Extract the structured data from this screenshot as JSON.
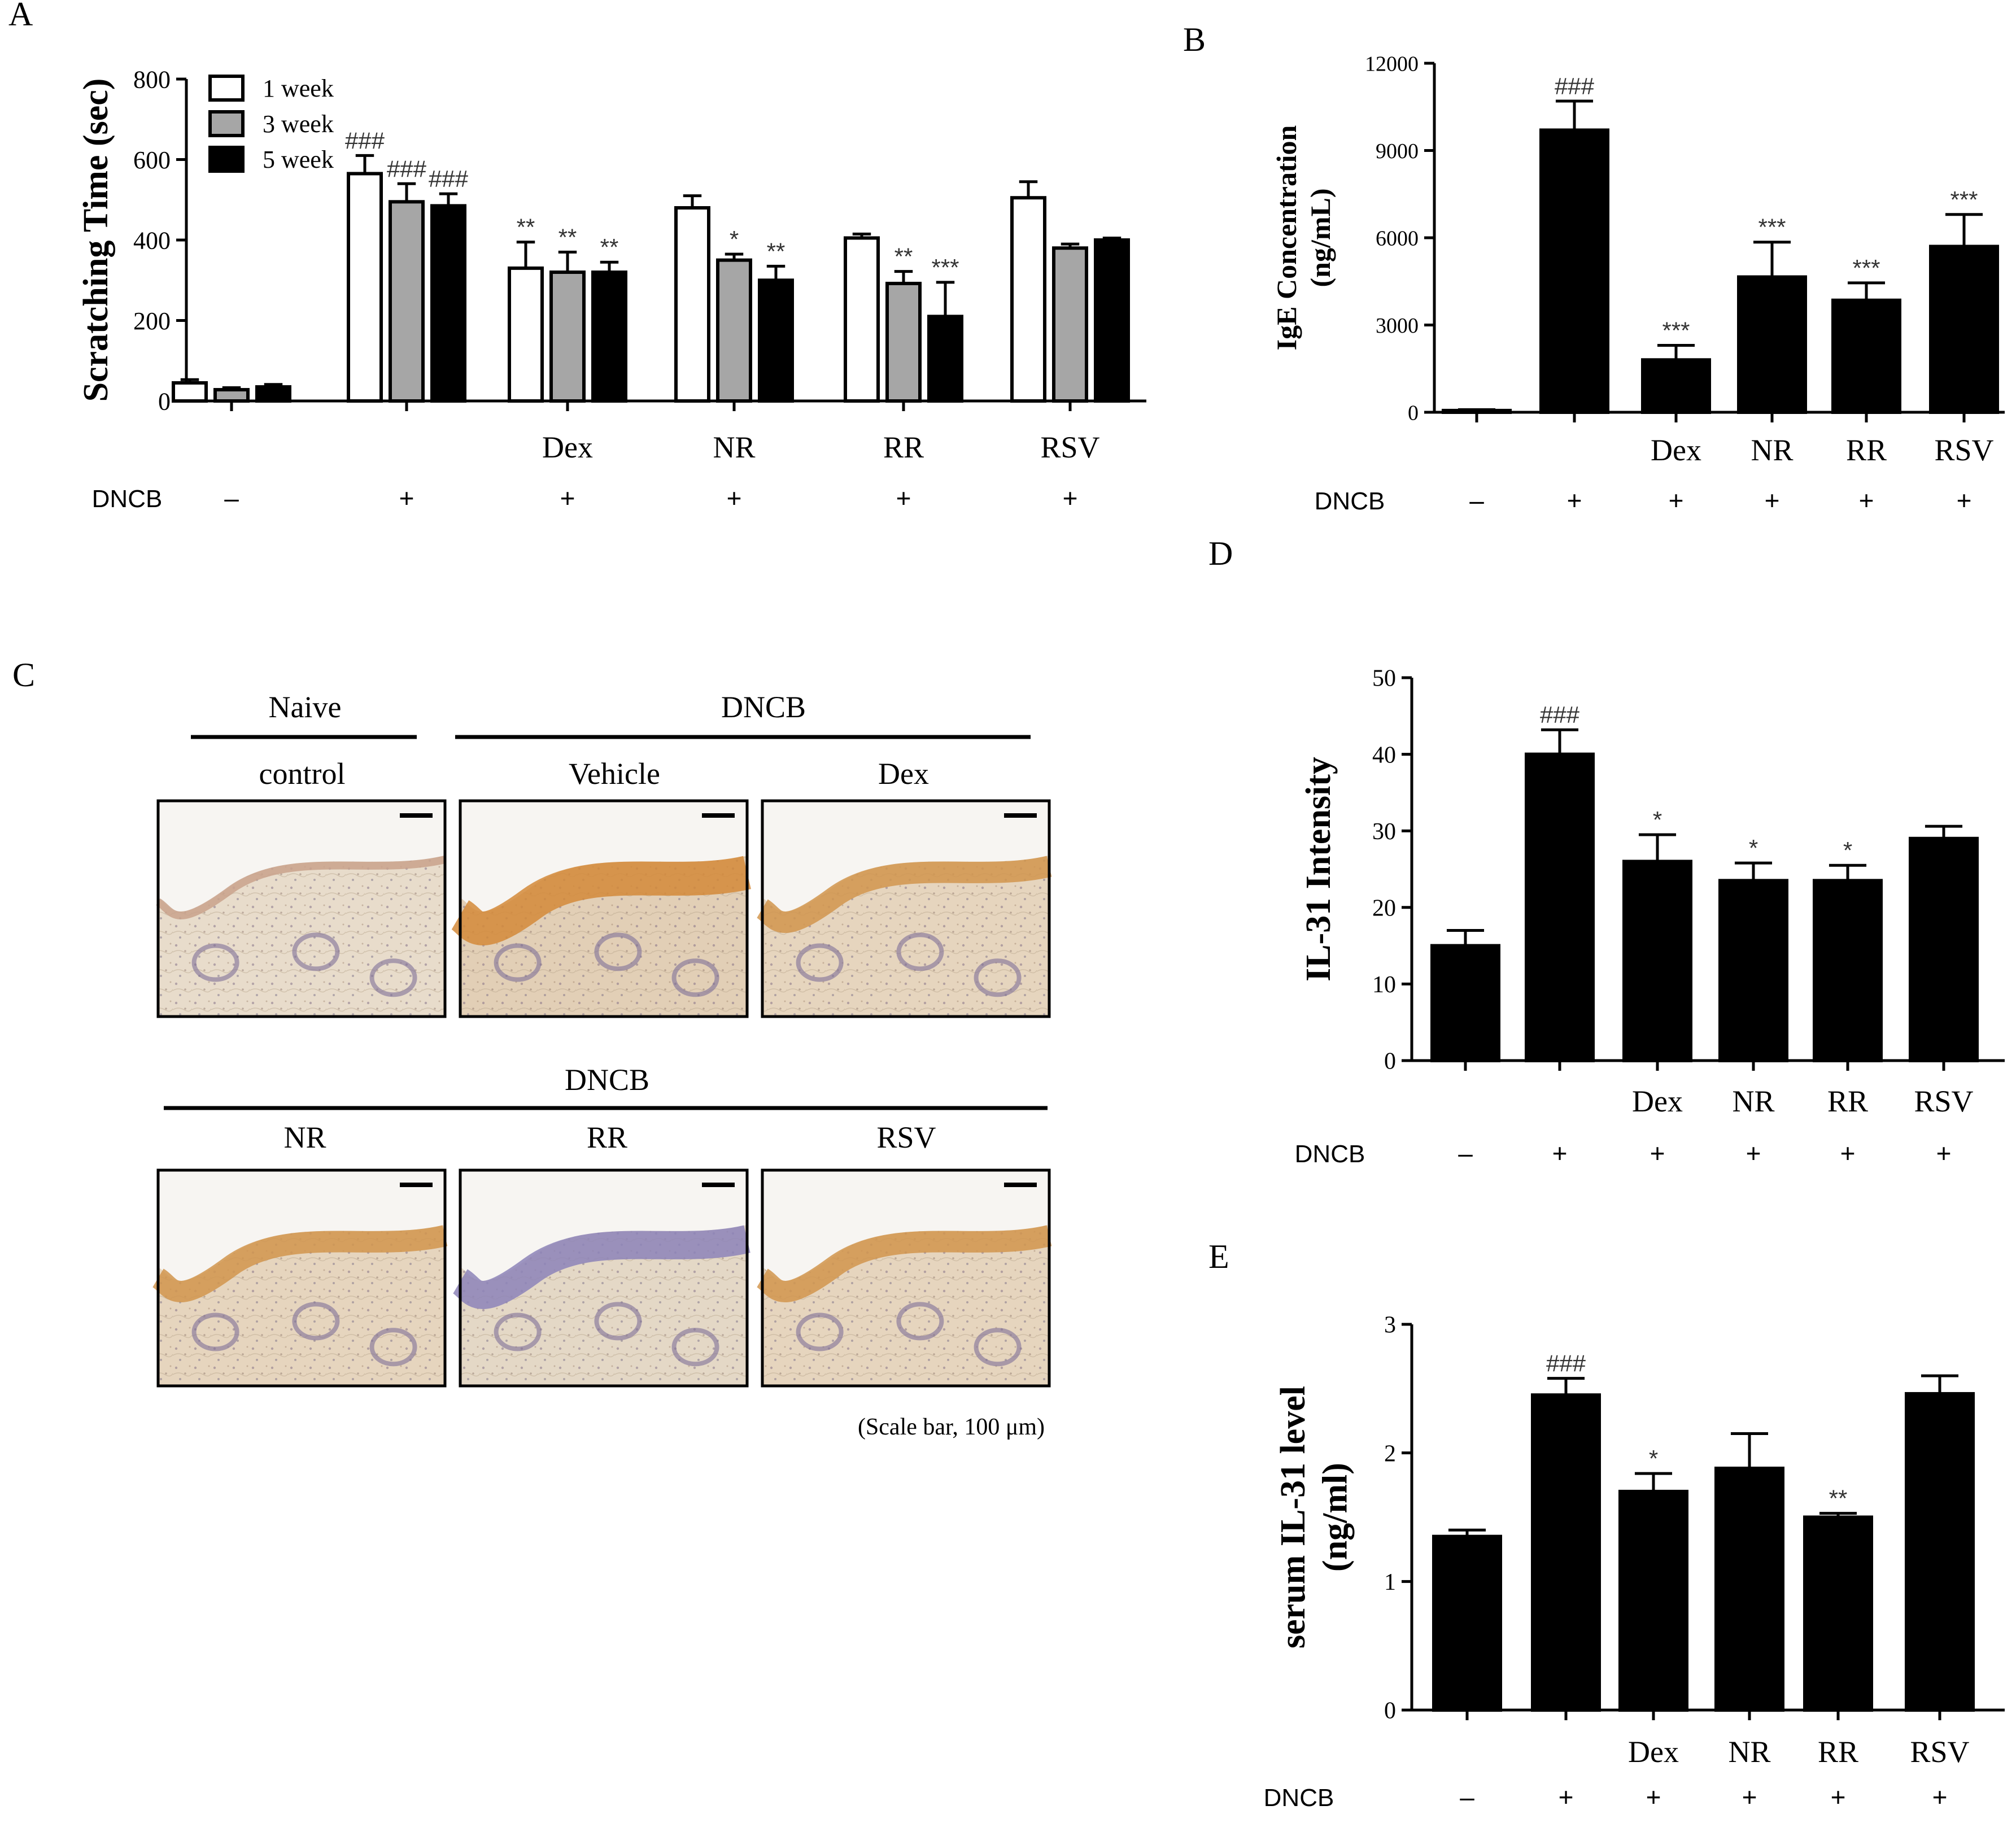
{
  "chart_data": [
    {
      "id": "A",
      "panel_label": "A",
      "type": "bar",
      "ylabel": "Scratching Time (sec)",
      "ylim": [
        0,
        800
      ],
      "yticks": [
        "0",
        "200",
        "400",
        "600",
        "800"
      ],
      "group_labels": [
        "",
        "",
        "Dex",
        "NR",
        "RR",
        "RSV"
      ],
      "row_label": "DNCB",
      "row_values": [
        "–",
        "+",
        "+",
        "+",
        "+",
        "+"
      ],
      "legend": [
        "1 week",
        "3 week",
        "5 week"
      ],
      "series": [
        {
          "name": "1 week",
          "color": "#ffffff",
          "values": [
            45,
            565,
            330,
            480,
            405,
            505
          ],
          "errors": [
            8,
            45,
            65,
            30,
            10,
            40
          ],
          "labels": [
            "",
            "###",
            "**",
            "",
            "",
            ""
          ]
        },
        {
          "name": "3 week",
          "color": "#a6a6a6",
          "values": [
            28,
            495,
            320,
            350,
            292,
            380
          ],
          "errors": [
            5,
            45,
            50,
            15,
            30,
            10
          ],
          "labels": [
            "",
            "###",
            "**",
            "*",
            "**",
            ""
          ]
        },
        {
          "name": "5 week",
          "color": "#000000",
          "values": [
            35,
            485,
            320,
            300,
            210,
            400
          ],
          "errors": [
            6,
            30,
            25,
            35,
            85,
            5
          ],
          "labels": [
            "",
            "###",
            "**",
            "**",
            "***",
            ""
          ]
        }
      ]
    },
    {
      "id": "B",
      "panel_label": "B",
      "type": "bar",
      "ylabel_lines": [
        "IgE Concentration",
        "(ng/mL)"
      ],
      "ylim": [
        0,
        12000
      ],
      "yticks": [
        "0",
        "3000",
        "6000",
        "9000",
        "12000"
      ],
      "categories": [
        "",
        "",
        "Dex",
        "NR",
        "RR",
        "RSV"
      ],
      "row_label": "DNCB",
      "row_values": [
        "–",
        "+",
        "+",
        "+",
        "+",
        "+"
      ],
      "values": [
        60,
        9700,
        1800,
        4650,
        3850,
        5700
      ],
      "errors": [
        30,
        1000,
        500,
        1200,
        600,
        1100
      ],
      "labels": [
        "",
        "###",
        "***",
        "***",
        "***",
        "***"
      ]
    },
    {
      "id": "D",
      "panel_label": "D",
      "type": "bar",
      "ylabel": "IL-31 Intensity",
      "ylim": [
        0,
        50
      ],
      "yticks": [
        "0",
        "10",
        "20",
        "30",
        "40",
        "50"
      ],
      "categories": [
        "",
        "",
        "Dex",
        "NR",
        "RR",
        "RSV"
      ],
      "row_label": "DNCB",
      "row_values": [
        "–",
        "+",
        "+",
        "+",
        "+",
        "+"
      ],
      "values": [
        15,
        40,
        26,
        23.5,
        23.5,
        29
      ],
      "errors": [
        2,
        3.2,
        3.5,
        2.3,
        2.0,
        1.6
      ],
      "labels": [
        "",
        "###",
        "*",
        "*",
        "*",
        ""
      ]
    },
    {
      "id": "E",
      "panel_label": "E",
      "type": "bar",
      "ylabel_lines": [
        "serum IL-31 level",
        "(ng/ml)"
      ],
      "ylim": [
        0,
        3
      ],
      "yticks": [
        "0",
        "1",
        "2",
        "3"
      ],
      "categories": [
        "",
        "",
        "Dex",
        "NR",
        "RR",
        "RSV"
      ],
      "row_label": "DNCB",
      "row_values": [
        "–",
        "+",
        "+",
        "+",
        "+",
        "+"
      ],
      "values": [
        1.35,
        2.45,
        1.7,
        1.88,
        1.5,
        2.46
      ],
      "errors": [
        0.05,
        0.13,
        0.14,
        0.27,
        0.03,
        0.14
      ],
      "labels": [
        "",
        "###",
        "*",
        "",
        "**",
        ""
      ]
    }
  ],
  "histology": {
    "panel_label": "C",
    "top": {
      "header_left": "Naive",
      "header_right": "DNCB",
      "tiles": [
        {
          "label": "control",
          "stain": "light"
        },
        {
          "label": "Vehicle",
          "stain": "heavy"
        },
        {
          "label": "Dex",
          "stain": "medium"
        }
      ]
    },
    "bottom": {
      "header": "DNCB",
      "tiles": [
        {
          "label": "NR",
          "stain": "medium"
        },
        {
          "label": "RR",
          "stain": "blue"
        },
        {
          "label": "RSV",
          "stain": "medium"
        }
      ]
    },
    "scale_note": "(Scale bar, 100 μm)"
  }
}
